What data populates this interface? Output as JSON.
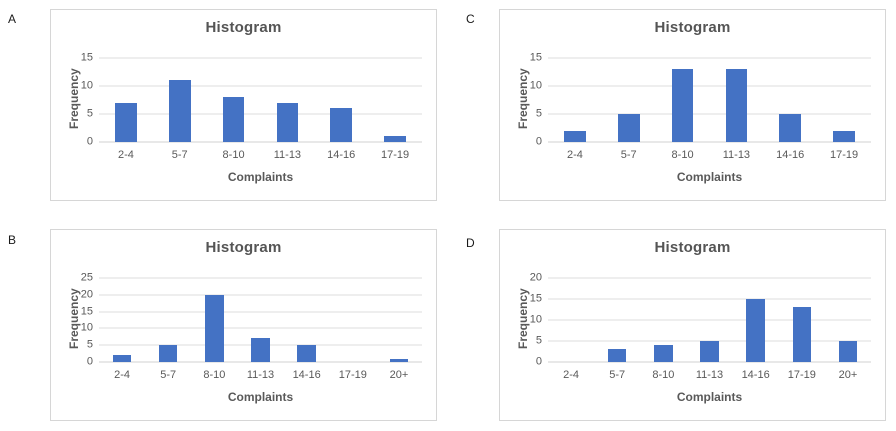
{
  "page": {
    "background": "#ffffff"
  },
  "colors": {
    "bar": "#4472c4",
    "gridline": "#dcdcdc",
    "axis_line": "#d0d0d0",
    "title_text": "#555555",
    "tick_text": "#595959",
    "panel_border": "#d6d6d6"
  },
  "chart_data": [
    {
      "type": "bar",
      "panel_label": "A",
      "title": "Histogram",
      "xlabel": "Complaints",
      "ylabel": "Frequency",
      "categories": [
        "2-4",
        "5-7",
        "8-10",
        "11-13",
        "14-16",
        "17-19"
      ],
      "values": [
        7,
        11,
        8,
        7,
        6,
        1
      ],
      "yticks": [
        0,
        5,
        10,
        15
      ],
      "ylim": [
        0,
        15
      ],
      "grid": true,
      "legend": "none"
    },
    {
      "type": "bar",
      "panel_label": "B",
      "title": "Histogram",
      "xlabel": "Complaints",
      "ylabel": "Frequency",
      "categories": [
        "2-4",
        "5-7",
        "8-10",
        "11-13",
        "14-16",
        "17-19",
        "20+"
      ],
      "values": [
        2,
        5,
        20,
        7,
        5,
        0,
        1
      ],
      "yticks": [
        0,
        5,
        10,
        15,
        20,
        25
      ],
      "ylim": [
        0,
        25
      ],
      "grid": true,
      "legend": "none"
    },
    {
      "type": "bar",
      "panel_label": "C",
      "title": "Histogram",
      "xlabel": "Complaints",
      "ylabel": "Frequency",
      "categories": [
        "2-4",
        "5-7",
        "8-10",
        "11-13",
        "14-16",
        "17-19"
      ],
      "values": [
        2,
        5,
        13,
        13,
        5,
        2
      ],
      "yticks": [
        0,
        5,
        10,
        15
      ],
      "ylim": [
        0,
        15
      ],
      "grid": true,
      "legend": "none"
    },
    {
      "type": "bar",
      "panel_label": "D",
      "title": "Histogram",
      "xlabel": "Complaints",
      "ylabel": "Frequency",
      "categories": [
        "2-4",
        "5-7",
        "8-10",
        "11-13",
        "14-16",
        "17-19",
        "20+"
      ],
      "values": [
        0,
        3,
        4,
        5,
        15,
        13,
        5
      ],
      "yticks": [
        0,
        5,
        10,
        15,
        20
      ],
      "ylim": [
        0,
        20
      ],
      "grid": true,
      "legend": "none"
    }
  ]
}
